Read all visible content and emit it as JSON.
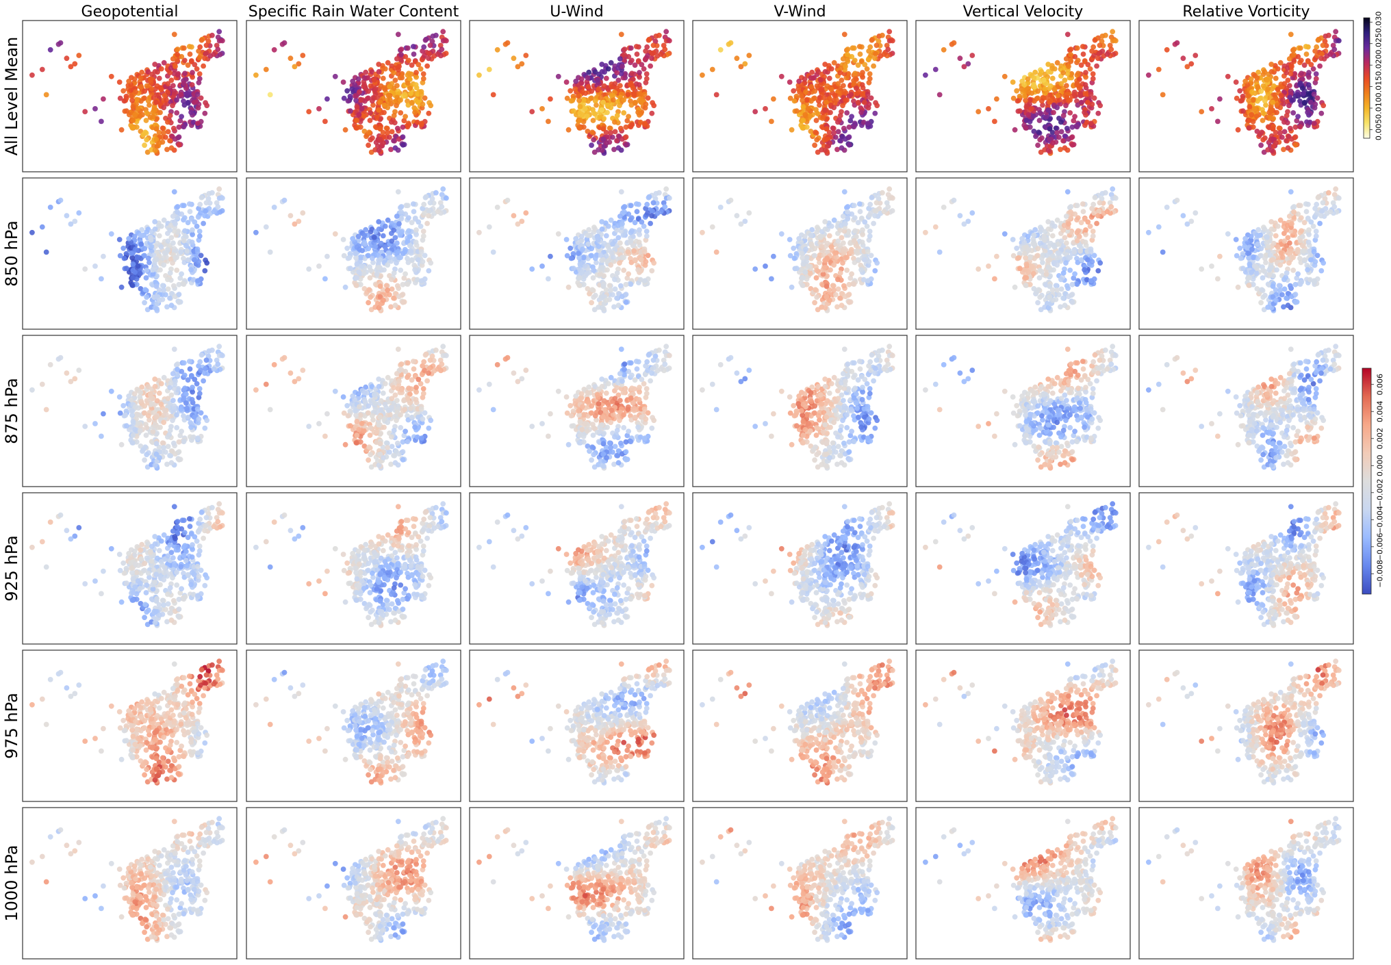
{
  "figure": {
    "columns": [
      "Geopotential",
      "Specific Rain Water Content",
      "U-Wind",
      "V-Wind",
      "Vertical Velocity",
      "Relative Vorticity"
    ],
    "rows": [
      "All Level Mean",
      "850 hPa",
      "875 hPa",
      "925 hPa",
      "975 hPa",
      "1000 hPa"
    ]
  },
  "chart_data": {
    "type": "scatter",
    "description_of_marks": "station points colored by attribution value",
    "panels": "6 rows x 6 columns of station scatter maps (no axis ticks)",
    "colorbars": [
      {
        "name": "mean",
        "colormap": "CMRmap_r",
        "colors": [
          "#fdfde6",
          "#f7e36a",
          "#f4b427",
          "#ef7f1c",
          "#e84a26",
          "#b9295f",
          "#6a2a9c",
          "#2f1e7c",
          "#06061a"
        ],
        "range": [
          0.003,
          0.031
        ],
        "ticks": [
          0.005,
          0.01,
          0.015,
          0.02,
          0.025,
          0.03
        ],
        "tick_labels": [
          "0.005",
          "0.010",
          "0.015",
          "0.020",
          "0.025",
          "0.030"
        ],
        "applies_to_rows": [
          "All Level Mean"
        ]
      },
      {
        "name": "levels",
        "colormap": "coolwarm",
        "colors": [
          "#3b4cc0",
          "#6788ee",
          "#9abbff",
          "#c9d7f0",
          "#dddddd",
          "#f2cbb7",
          "#f7a889",
          "#e26952",
          "#b40426"
        ],
        "range": [
          -0.0095,
          0.0072
        ],
        "ticks": [
          -0.008,
          -0.006,
          -0.004,
          -0.002,
          0.0,
          0.002,
          0.004,
          0.006
        ],
        "tick_labels": [
          "−0.008",
          "−0.006",
          "−0.004",
          "−0.002",
          "0.000",
          "0.002",
          "0.004",
          "0.006"
        ],
        "applies_to_rows": [
          "850 hPa",
          "875 hPa",
          "925 hPa",
          "975 hPa",
          "1000 hPa"
        ]
      }
    ],
    "grid": false,
    "legend": "colorbars at right"
  }
}
